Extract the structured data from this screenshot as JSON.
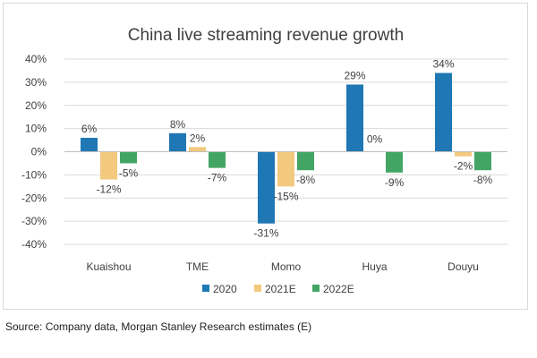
{
  "chart_data": {
    "type": "bar",
    "title": "China live streaming revenue growth",
    "xlabel": "",
    "ylabel": "",
    "categories": [
      "Kuaishou",
      "TME",
      "Momo",
      "Huya",
      "Douyu"
    ],
    "series": [
      {
        "name": "2020",
        "color": "#1f77b4",
        "values": [
          6,
          8,
          -31,
          29,
          34
        ],
        "labels": [
          "6%",
          "8%",
          "-31%",
          "29%",
          "34%"
        ]
      },
      {
        "name": "2021E",
        "color": "#f2c97d",
        "values": [
          -12,
          2,
          -15,
          0,
          -2
        ],
        "labels": [
          "-12%",
          "2%",
          "-15%",
          "0%",
          "-2%"
        ]
      },
      {
        "name": "2022E",
        "color": "#43a564",
        "values": [
          -5,
          -7,
          -8,
          -9,
          -8
        ],
        "labels": [
          "-5%",
          "-7%",
          "-8%",
          "-9%",
          "-8%"
        ]
      }
    ],
    "ylim": [
      -40,
      40
    ],
    "yticks": [
      40,
      30,
      20,
      10,
      0,
      -10,
      -20,
      -30,
      -40
    ],
    "ytick_labels": [
      "40%",
      "30%",
      "20%",
      "10%",
      "0%",
      "-10%",
      "-20%",
      "-30%",
      "-40%"
    ],
    "grid": true,
    "legend_position": "bottom-center"
  },
  "source": "Source: Company data, Morgan Stanley Research estimates (E)"
}
